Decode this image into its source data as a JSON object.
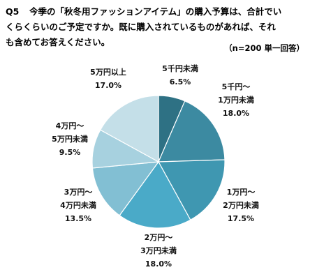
{
  "question": {
    "label": "Q5",
    "line1": "今季の「秋冬用ファッションアイテム」の購入予算は、合計でい",
    "line2": "くらくらいのご予定ですか。既に購入されているものがあれば、それ",
    "line3": "も含めてお答えください。",
    "note": "（n=200 単一回答）"
  },
  "chart_data": {
    "type": "pie",
    "start_angle_deg": 0,
    "direction": "clockwise",
    "slices": [
      {
        "label_lines": [
          "5千円未満"
        ],
        "value_text": "6.5%",
        "value": 6.5,
        "color": "#2e7184"
      },
      {
        "label_lines": [
          "5千円～",
          "1万円未満"
        ],
        "value_text": "18.0%",
        "value": 18.0,
        "color": "#3c8aa1"
      },
      {
        "label_lines": [
          "1万円～",
          "2万円未満"
        ],
        "value_text": "17.5%",
        "value": 17.5,
        "color": "#3f97b1"
      },
      {
        "label_lines": [
          "2万円～",
          "3万円未満"
        ],
        "value_text": "18.0%",
        "value": 18.0,
        "color": "#4aaac8"
      },
      {
        "label_lines": [
          "3万円～",
          "4万円未満"
        ],
        "value_text": "13.5%",
        "value": 13.5,
        "color": "#82bfd3"
      },
      {
        "label_lines": [
          "4万円～",
          "5万円未満"
        ],
        "value_text": "9.5%",
        "value": 9.5,
        "color": "#a7d1df"
      },
      {
        "label_lines": [
          "5万円以上"
        ],
        "value_text": "17.0%",
        "value": 17.0,
        "color": "#c4dfe8"
      }
    ]
  }
}
